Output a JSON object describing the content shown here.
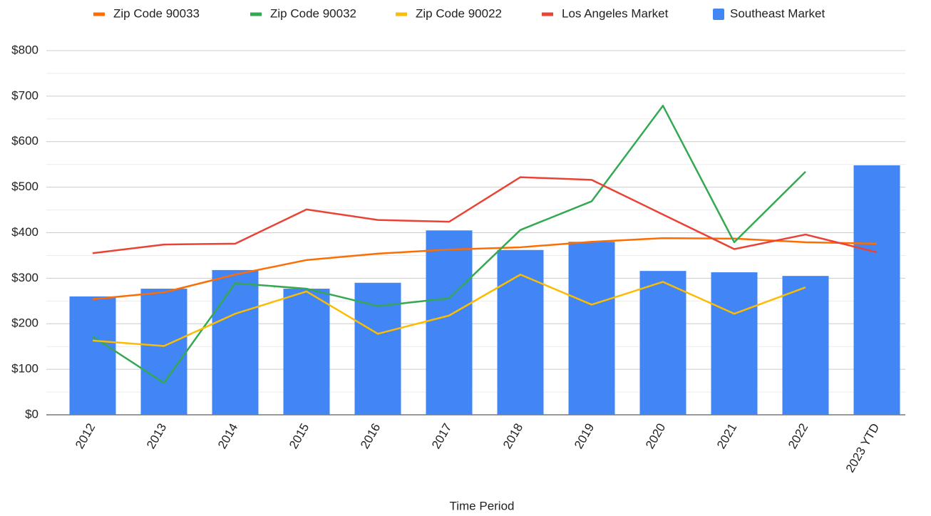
{
  "chart_data": {
    "type": "combo",
    "x_label": "Time Period",
    "categories": [
      "2012",
      "2013",
      "2014",
      "2015",
      "2016",
      "2017",
      "2018",
      "2019",
      "2020",
      "2021",
      "2022",
      "2023 YTD"
    ],
    "series": [
      {
        "name": "Zip Code 90033",
        "type": "line",
        "color": "#ff6d01",
        "values": [
          254,
          269,
          308,
          340,
          354,
          363,
          368,
          380,
          388,
          387,
          379,
          376
        ]
      },
      {
        "name": "Zip Code 90032",
        "type": "line",
        "color": "#34a853",
        "values": [
          172,
          70,
          289,
          277,
          239,
          256,
          406,
          469,
          679,
          379,
          534,
          null
        ]
      },
      {
        "name": "Zip Code 90022",
        "type": "line",
        "color": "#fbbc04",
        "values": [
          163,
          151,
          222,
          271,
          178,
          218,
          308,
          242,
          292,
          222,
          280,
          null
        ]
      },
      {
        "name": "Los Angeles Market",
        "type": "line",
        "color": "#ea4335",
        "values": [
          355,
          374,
          376,
          451,
          428,
          424,
          522,
          516,
          440,
          364,
          396,
          357
        ]
      },
      {
        "name": "Southeast Market",
        "type": "bar",
        "color": "#4285f4",
        "values": [
          260,
          277,
          318,
          277,
          290,
          405,
          362,
          380,
          316,
          313,
          305,
          548
        ]
      }
    ],
    "ylim": [
      0,
      800
    ],
    "yticks": [
      {
        "value": 0,
        "label": "$0"
      },
      {
        "value": 100,
        "label": "$100"
      },
      {
        "value": 200,
        "label": "$200"
      },
      {
        "value": 300,
        "label": "$300"
      },
      {
        "value": 400,
        "label": "$400"
      },
      {
        "value": 500,
        "label": "$500"
      },
      {
        "value": 600,
        "label": "$600"
      },
      {
        "value": 700,
        "label": "$700"
      },
      {
        "value": 800,
        "label": "$800"
      }
    ],
    "minor_yticks": [
      50,
      150,
      250,
      350,
      450,
      550,
      650,
      750
    ],
    "grid": true,
    "legend": "top"
  }
}
